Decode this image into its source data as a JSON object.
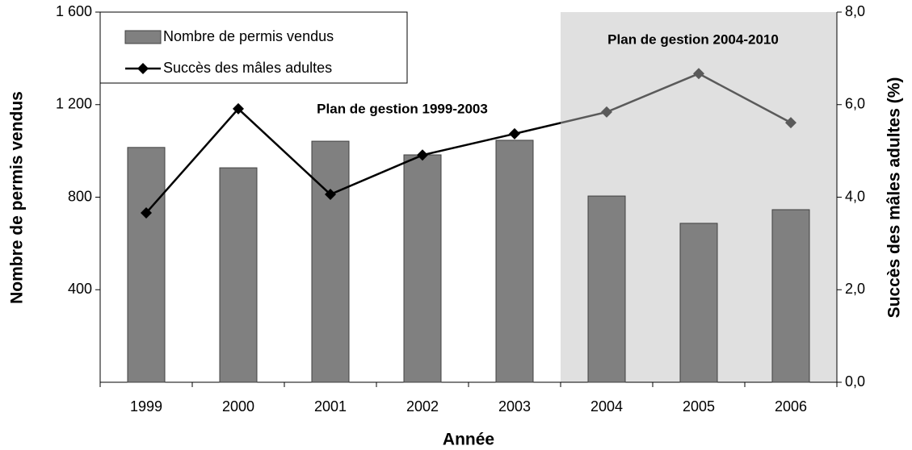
{
  "chart_data": {
    "type": "bar_line",
    "x_label": "Année",
    "y_label": "Nombre de permis vendus",
    "y2_label": "Succès des mâles adultes (%)",
    "categories": [
      "1999",
      "2000",
      "2001",
      "2002",
      "2003",
      "2004",
      "2005",
      "2006"
    ],
    "series": [
      {
        "name": "Nombre de permis vendus",
        "type": "bar",
        "color": "#808080",
        "values": [
          1015,
          927,
          1042,
          983,
          1046,
          805,
          687,
          746
        ]
      },
      {
        "name": "Succès des mâles adultes",
        "type": "line",
        "axis": "y2",
        "color": "#000000",
        "shaded_color": "#5a5a5a",
        "values": [
          3.66,
          5.91,
          4.06,
          4.91,
          5.37,
          5.84,
          6.67,
          5.61
        ]
      }
    ],
    "ylim": [
      0,
      1600
    ],
    "yticks": [
      400,
      800,
      {
        "value": 1200,
        "label": "1 200"
      },
      {
        "value": 1600,
        "label": "1 600"
      }
    ],
    "y2lim": [
      0,
      8
    ],
    "y2ticks": [
      {
        "value": 0,
        "label": "0,0"
      },
      {
        "value": 2,
        "label": "2,0"
      },
      {
        "value": 4,
        "label": "4,0"
      },
      {
        "value": 6,
        "label": "6,0"
      },
      {
        "value": 8,
        "label": "8,0"
      }
    ],
    "shaded_region": {
      "from_category": "2004",
      "color": "#e0e0e0"
    },
    "annotations": [
      "Plan de gestion 1999-2003",
      "Plan de gestion 2004-2010"
    ],
    "legend": "top-left"
  }
}
